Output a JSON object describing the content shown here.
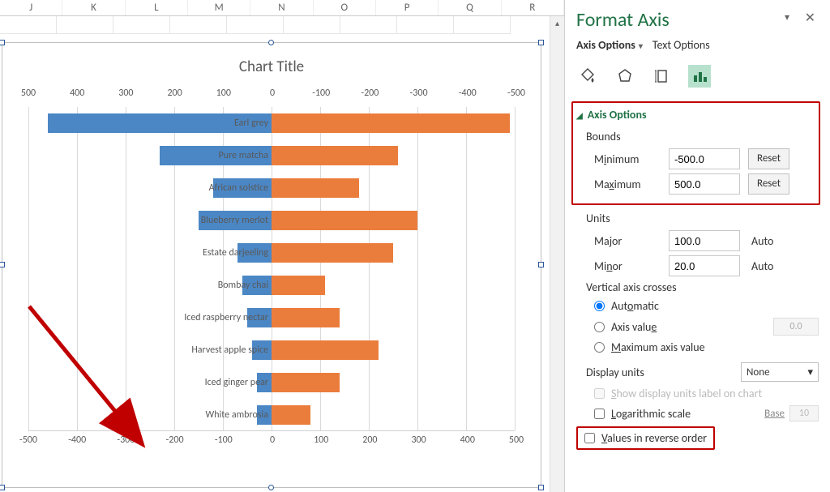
{
  "columns": [
    "J",
    "K",
    "L",
    "M",
    "N",
    "O",
    "P",
    "Q",
    "R"
  ],
  "chart": {
    "title": "Chart Title",
    "top_axis": [
      "500",
      "400",
      "300",
      "200",
      "100",
      "0",
      "-100",
      "-200",
      "-300",
      "-400",
      "-500"
    ],
    "bot_axis": [
      "-500",
      "-400",
      "-300",
      "-200",
      "-100",
      "0",
      "100",
      "200",
      "300",
      "400",
      "500"
    ],
    "series": [
      {
        "label": "Earl grey",
        "blue_frac": 0.92,
        "orange_frac": 0.98
      },
      {
        "label": "Pure matcha",
        "blue_frac": 0.46,
        "orange_frac": 0.52
      },
      {
        "label": "African solstice",
        "blue_frac": 0.24,
        "orange_frac": 0.36
      },
      {
        "label": "Blueberry merlot",
        "blue_frac": 0.3,
        "orange_frac": 0.6
      },
      {
        "label": "Estate darjeeling",
        "blue_frac": 0.14,
        "orange_frac": 0.5
      },
      {
        "label": "Bombay chai",
        "blue_frac": 0.12,
        "orange_frac": 0.22
      },
      {
        "label": "Iced raspberry nectar",
        "blue_frac": 0.1,
        "orange_frac": 0.28
      },
      {
        "label": "Harvest apple spice",
        "blue_frac": 0.08,
        "orange_frac": 0.44
      },
      {
        "label": "Iced ginger pear",
        "blue_frac": 0.06,
        "orange_frac": 0.28
      },
      {
        "label": "White ambrosia",
        "blue_frac": 0.06,
        "orange_frac": 0.16
      }
    ],
    "colors": {
      "blue": "#4b87c5",
      "orange": "#eb7d3c",
      "grid": "#d9d9d9"
    }
  },
  "panel": {
    "title": "Format Axis",
    "tab_axis": "Axis Options",
    "tab_text": "Text Options",
    "sec_axis_options": "Axis Options",
    "bounds_label": "Bounds",
    "min_label": "Minimum",
    "max_label": "Maximum",
    "min_value": "-500.0",
    "max_value": "500.0",
    "reset_label": "Reset",
    "units_label": "Units",
    "major_label": "Major",
    "minor_label": "Minor",
    "major_value": "100.0",
    "minor_value": "20.0",
    "auto_label": "Auto",
    "vaxis_crosses": "Vertical axis crosses",
    "radio_auto": "Automatic",
    "radio_axisval": "Axis value",
    "axis_val_num": "0.0",
    "radio_max": "Maximum axis value",
    "display_units": "Display units",
    "none_label": "None",
    "show_units_label": "Show display units label on chart",
    "log_label": "Logarithmic scale",
    "base_label": "Base",
    "base_value": "10",
    "reverse_label": "Values in reverse order"
  }
}
